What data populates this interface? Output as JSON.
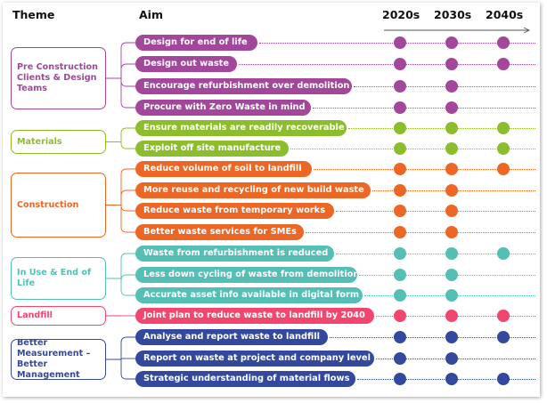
{
  "headers": {
    "theme": "Theme",
    "aim": "Aim",
    "decades": [
      "2020s",
      "2030s",
      "2040s"
    ]
  },
  "themes": [
    {
      "key": "pre",
      "label": "Pre Construction Clients & Design Teams",
      "color": "#a2479b",
      "aims": [
        {
          "label": "Design for end of life",
          "decades": [
            true,
            true,
            true
          ]
        },
        {
          "label": "Design out waste",
          "decades": [
            true,
            true,
            true
          ]
        },
        {
          "label": "Encourage refurbishment over demolition",
          "decades": [
            true,
            true,
            false
          ]
        },
        {
          "label": "Procure with Zero Waste in mind",
          "decades": [
            true,
            true,
            false
          ]
        }
      ]
    },
    {
      "key": "materials",
      "label": "Materials",
      "color": "#8cbd2c",
      "aims": [
        {
          "label": "Ensure materials are readily recoverable",
          "decades": [
            true,
            true,
            true
          ]
        },
        {
          "label": "Exploit off site manufacture",
          "decades": [
            true,
            true,
            true
          ]
        }
      ]
    },
    {
      "key": "construction",
      "label": "Construction",
      "color": "#ec6625",
      "aims": [
        {
          "label": "Reduce volume of soil to landfill",
          "decades": [
            true,
            true,
            true
          ]
        },
        {
          "label": "More reuse and recycling of new build waste",
          "decades": [
            true,
            true,
            false
          ]
        },
        {
          "label": "Reduce waste from temporary works",
          "decades": [
            true,
            true,
            false
          ]
        },
        {
          "label": "Better waste services for SMEs",
          "decades": [
            true,
            true,
            false
          ]
        }
      ]
    },
    {
      "key": "inuse",
      "label": "In Use & End of Life",
      "color": "#55bfb6",
      "aims": [
        {
          "label": "Waste from refurbishment is reduced",
          "decades": [
            true,
            true,
            true
          ]
        },
        {
          "label": "Less down cycling of waste from demolition",
          "decades": [
            true,
            true,
            false
          ]
        },
        {
          "label": "Accurate asset info available in digital form",
          "decades": [
            true,
            true,
            false
          ]
        }
      ]
    },
    {
      "key": "landfill",
      "label": "Landfill",
      "color": "#f2466f",
      "aims": [
        {
          "label": "Joint plan to reduce waste to landfill by 2040",
          "decades": [
            true,
            true,
            true
          ]
        }
      ]
    },
    {
      "key": "measure",
      "label": "Better Measurement – Better Management",
      "color": "#33499e",
      "aims": [
        {
          "label": "Analyse and report waste to landfill",
          "decades": [
            true,
            true,
            true
          ]
        },
        {
          "label": "Report on waste at project and company level",
          "decades": [
            true,
            true,
            false
          ]
        },
        {
          "label": "Strategic understanding of material flows",
          "decades": [
            true,
            true,
            true
          ]
        }
      ]
    }
  ]
}
